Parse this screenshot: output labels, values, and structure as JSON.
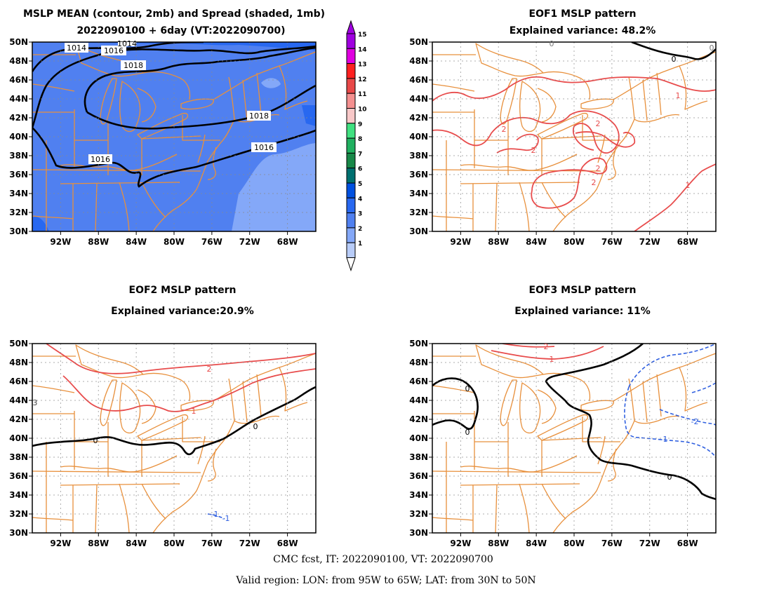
{
  "panels": [
    {
      "id": "mean",
      "title_lines": [
        "MSLP MEAN (contour, 2mb) and Spread (shaded, 1mb)",
        "2022090100 + 6day (VT:2022090700)"
      ],
      "contour_labels": [
        "1014",
        "1016",
        "1014",
        "1018",
        "1018",
        "1016",
        "1016"
      ]
    },
    {
      "id": "eof1",
      "title_lines": [
        "EOF1 MSLP pattern",
        "Explained variance: 48.2%"
      ],
      "contour_labels": [
        "0",
        "0",
        "0",
        "1",
        "2",
        "2",
        "2",
        "2",
        "2",
        "1"
      ]
    },
    {
      "id": "eof2",
      "title_lines": [
        "EOF2 MSLP pattern",
        "Explained variance:20.9%"
      ],
      "contour_labels": [
        "2",
        "1",
        "0",
        "0",
        "-1",
        "-1",
        "3"
      ]
    },
    {
      "id": "eof3",
      "title_lines": [
        "EOF3 MSLP pattern",
        "Explained variance: 11%"
      ],
      "contour_labels": [
        "2",
        "1",
        "0",
        "0",
        "0",
        "-2",
        "-1"
      ]
    }
  ],
  "axes": {
    "lon_ticks": [
      "92W",
      "88W",
      "84W",
      "80W",
      "76W",
      "72W",
      "68W"
    ],
    "lat_ticks": [
      "50N",
      "48N",
      "46N",
      "44N",
      "42N",
      "40N",
      "38N",
      "36N",
      "34N",
      "32N",
      "30N"
    ]
  },
  "colorbar": {
    "labels": [
      "15",
      "14",
      "13",
      "12",
      "11",
      "10",
      "9",
      "8",
      "7",
      "6",
      "5",
      "4",
      "3",
      "2",
      "1"
    ],
    "colors": [
      "#a000e0",
      "#e000e0",
      "#ff2020",
      "#e84848",
      "#f49090",
      "#f8c8c8",
      "#40e080",
      "#20b060",
      "#188848",
      "#007070",
      "#0050e0",
      "#2868f0",
      "#5080f0",
      "#84a8f8",
      "#b8ccf8"
    ]
  },
  "colors": {
    "boundary": "#e8903c",
    "mean_contour": "#000000",
    "pos_contour": "#e84c4c",
    "neg_contour": "#3060e0",
    "zero_contour": "#000000"
  },
  "footer": {
    "line1": "CMC fcst, IT: 2022090100, VT: 2022090700",
    "line2": "Valid region: LON: from 95W to 65W; LAT: from 30N to 50N"
  }
}
